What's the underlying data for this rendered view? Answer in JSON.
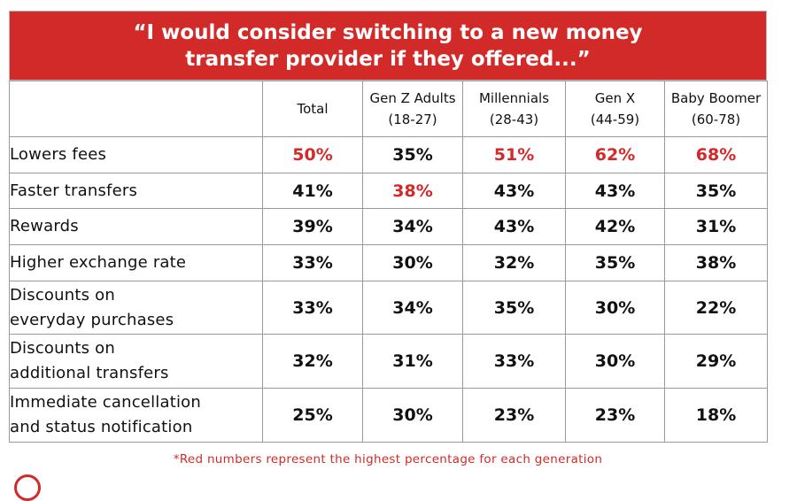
{
  "title_lines": [
    "“I would consider switching to a new money",
    "transfer provider if they offered...”"
  ],
  "footnote": "*Red numbers represent the highest percentage for each generation",
  "colors": {
    "accent": "#d22a28",
    "text": "#111111",
    "border": "#9a9a9a"
  },
  "chart_data": {
    "type": "table",
    "title": "“I would consider switching to a new money transfer provider if they offered...”",
    "columns": [
      {
        "name": "Total",
        "sub": ""
      },
      {
        "name": "Gen Z Adults",
        "sub": "(18-27)"
      },
      {
        "name": "Millennials",
        "sub": "(28-43)"
      },
      {
        "name": "Gen X",
        "sub": "(44-59)"
      },
      {
        "name": "Baby Boomer",
        "sub": "(60-78)"
      }
    ],
    "rows": [
      {
        "label_lines": [
          "Lowers fees"
        ],
        "values": [
          "50%",
          "35%",
          "51%",
          "62%",
          "68%"
        ],
        "highlight": [
          true,
          false,
          true,
          true,
          true
        ]
      },
      {
        "label_lines": [
          "Faster transfers"
        ],
        "values": [
          "41%",
          "38%",
          "43%",
          "43%",
          "35%"
        ],
        "highlight": [
          false,
          true,
          false,
          false,
          false
        ]
      },
      {
        "label_lines": [
          "Rewards"
        ],
        "values": [
          "39%",
          "34%",
          "43%",
          "42%",
          "31%"
        ],
        "highlight": [
          false,
          false,
          false,
          false,
          false
        ]
      },
      {
        "label_lines": [
          "Higher exchange rate"
        ],
        "values": [
          "33%",
          "30%",
          "32%",
          "35%",
          "38%"
        ],
        "highlight": [
          false,
          false,
          false,
          false,
          false
        ]
      },
      {
        "label_lines": [
          "Discounts on",
          "everyday purchases"
        ],
        "values": [
          "33%",
          "34%",
          "35%",
          "30%",
          "22%"
        ],
        "highlight": [
          false,
          false,
          false,
          false,
          false
        ]
      },
      {
        "label_lines": [
          "Discounts on",
          "additional transfers"
        ],
        "values": [
          "32%",
          "31%",
          "33%",
          "30%",
          "29%"
        ],
        "highlight": [
          false,
          false,
          false,
          false,
          false
        ]
      },
      {
        "label_lines": [
          "Immediate cancellation",
          "and status notification"
        ],
        "values": [
          "25%",
          "30%",
          "23%",
          "23%",
          "18%"
        ],
        "highlight": [
          false,
          false,
          false,
          false,
          false
        ]
      }
    ]
  }
}
